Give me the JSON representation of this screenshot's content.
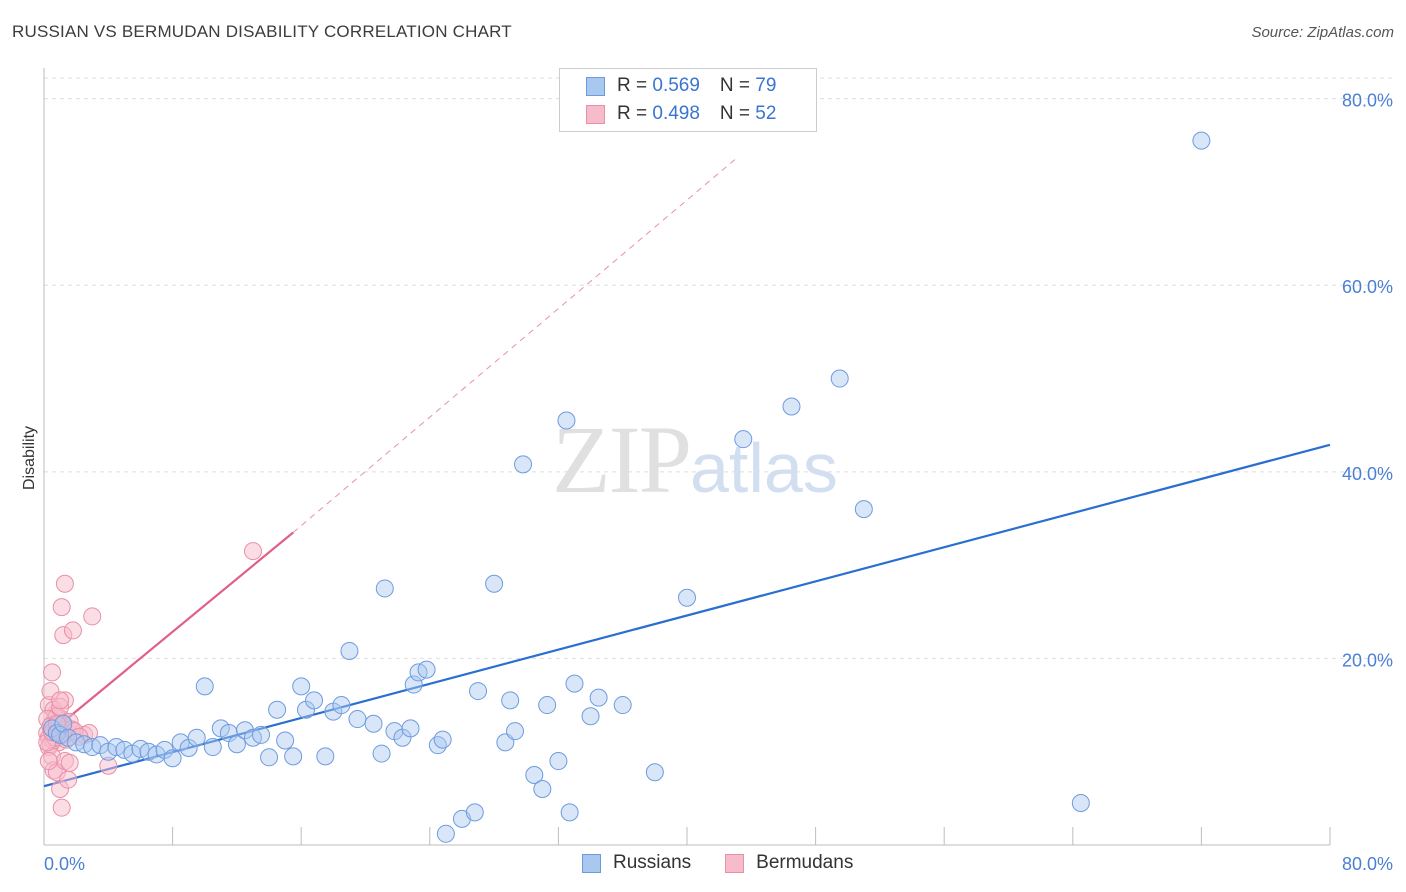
{
  "header": {
    "title": "RUSSIAN VS BERMUDAN DISABILITY CORRELATION CHART",
    "source": "Source: ZipAtlas.com"
  },
  "watermark": {
    "zip": "ZIP",
    "atlas": "atlas"
  },
  "legend": {
    "russians": {
      "r_label": "R = ",
      "r_value": "0.569",
      "n_label": "N = ",
      "n_value": "79"
    },
    "bermudans": {
      "r_label": "R = ",
      "r_value": "0.498",
      "n_label": "N = ",
      "n_value": "52"
    }
  },
  "bottom_legend": {
    "russians": "Russians",
    "bermudans": "Bermudans"
  },
  "colors": {
    "russians_fill": "#a9c8f0",
    "russians_stroke": "#6e9be0",
    "russians_line": "#2a6fd0",
    "bermudans_fill": "#f7bccc",
    "bermudans_stroke": "#e890a8",
    "bermudans_line": "#e0608a",
    "tick_text": "#4a7fd4"
  },
  "chart_data": {
    "type": "scatter",
    "title": "RUSSIAN VS BERMUDAN DISABILITY CORRELATION CHART",
    "xlabel": "",
    "ylabel": "Disability",
    "xlim": [
      0,
      80
    ],
    "ylim": [
      0,
      82
    ],
    "x_tick_labels": [
      "0.0%",
      "80.0%"
    ],
    "y_tick_labels": [
      "20.0%",
      "40.0%",
      "60.0%",
      "80.0%"
    ],
    "y_ticks": [
      20,
      40,
      60,
      80
    ],
    "grid": "horizontal dashed",
    "legend_position": "top-center",
    "series": [
      {
        "name": "Russians",
        "r": 0.569,
        "n": 79,
        "trend": {
          "x": [
            0,
            80
          ],
          "y": [
            6.3,
            42.9
          ],
          "style": "solid"
        },
        "points": [
          [
            0.5,
            12.5
          ],
          [
            0.8,
            12.0
          ],
          [
            1.0,
            11.8
          ],
          [
            1.2,
            13.0
          ],
          [
            1.5,
            11.5
          ],
          [
            2.0,
            11.0
          ],
          [
            2.5,
            10.8
          ],
          [
            3.0,
            10.5
          ],
          [
            3.5,
            10.7
          ],
          [
            4.0,
            10.0
          ],
          [
            4.5,
            10.5
          ],
          [
            5.0,
            10.2
          ],
          [
            5.5,
            9.8
          ],
          [
            6.0,
            10.3
          ],
          [
            6.5,
            10.0
          ],
          [
            7.0,
            9.7
          ],
          [
            7.5,
            10.2
          ],
          [
            8.0,
            9.3
          ],
          [
            8.5,
            11.0
          ],
          [
            9.0,
            10.4
          ],
          [
            9.5,
            11.5
          ],
          [
            10.0,
            17.0
          ],
          [
            10.5,
            10.5
          ],
          [
            11.0,
            12.5
          ],
          [
            11.5,
            12.0
          ],
          [
            12.0,
            10.8
          ],
          [
            12.5,
            12.3
          ],
          [
            13.0,
            11.5
          ],
          [
            13.5,
            11.8
          ],
          [
            14.0,
            9.4
          ],
          [
            14.5,
            14.5
          ],
          [
            15.0,
            11.2
          ],
          [
            15.5,
            9.5
          ],
          [
            16.0,
            17.0
          ],
          [
            16.3,
            14.5
          ],
          [
            16.8,
            15.5
          ],
          [
            17.5,
            9.5
          ],
          [
            18.0,
            14.3
          ],
          [
            18.5,
            15.0
          ],
          [
            19.0,
            20.8
          ],
          [
            19.5,
            13.5
          ],
          [
            20.5,
            13.0
          ],
          [
            21.0,
            9.8
          ],
          [
            21.2,
            27.5
          ],
          [
            21.8,
            12.2
          ],
          [
            22.3,
            11.5
          ],
          [
            22.8,
            12.5
          ],
          [
            23.0,
            17.2
          ],
          [
            23.3,
            18.5
          ],
          [
            23.8,
            18.8
          ],
          [
            24.5,
            10.7
          ],
          [
            24.8,
            11.3
          ],
          [
            25.0,
            1.2
          ],
          [
            26.0,
            2.8
          ],
          [
            26.8,
            3.5
          ],
          [
            27.0,
            16.5
          ],
          [
            28.0,
            28.0
          ],
          [
            28.7,
            11.0
          ],
          [
            29.0,
            15.5
          ],
          [
            29.3,
            12.2
          ],
          [
            29.8,
            40.8
          ],
          [
            30.5,
            7.5
          ],
          [
            31.0,
            6.0
          ],
          [
            31.3,
            15.0
          ],
          [
            32.0,
            9.0
          ],
          [
            32.5,
            45.5
          ],
          [
            32.7,
            3.5
          ],
          [
            33.0,
            17.3
          ],
          [
            34.0,
            13.8
          ],
          [
            34.5,
            15.8
          ],
          [
            36.0,
            15.0
          ],
          [
            38.0,
            7.8
          ],
          [
            40.0,
            26.5
          ],
          [
            43.5,
            43.5
          ],
          [
            46.5,
            47.0
          ],
          [
            49.5,
            50.0
          ],
          [
            51.0,
            36.0
          ],
          [
            64.5,
            4.5
          ],
          [
            72.0,
            75.5
          ]
        ]
      },
      {
        "name": "Bermudans",
        "r": 0.498,
        "n": 52,
        "trend": {
          "x": [
            0,
            15.5
          ],
          "y": [
            11.5,
            33.5
          ],
          "style": "solid"
        },
        "trend_extension": {
          "x": [
            15.5,
            43
          ],
          "y": [
            33.5,
            73.5
          ],
          "style": "dashed"
        },
        "points": [
          [
            0.2,
            12.0
          ],
          [
            0.3,
            11.5
          ],
          [
            0.4,
            10.8
          ],
          [
            0.5,
            13.0
          ],
          [
            0.6,
            11.2
          ],
          [
            0.7,
            14.0
          ],
          [
            0.8,
            12.5
          ],
          [
            0.9,
            11.0
          ],
          [
            1.0,
            12.2
          ],
          [
            1.1,
            13.5
          ],
          [
            1.2,
            11.8
          ],
          [
            1.3,
            15.5
          ],
          [
            1.5,
            12.0
          ],
          [
            0.3,
            15.0
          ],
          [
            0.4,
            16.5
          ],
          [
            0.5,
            18.5
          ],
          [
            0.6,
            14.5
          ],
          [
            0.8,
            13.8
          ],
          [
            1.0,
            14.8
          ],
          [
            1.2,
            12.8
          ],
          [
            0.3,
            10.5
          ],
          [
            0.5,
            9.5
          ],
          [
            0.6,
            8.0
          ],
          [
            0.8,
            7.8
          ],
          [
            1.0,
            6.0
          ],
          [
            1.1,
            4.0
          ],
          [
            1.3,
            9.0
          ],
          [
            1.5,
            7.0
          ],
          [
            1.6,
            8.8
          ],
          [
            1.1,
            25.5
          ],
          [
            1.2,
            22.5
          ],
          [
            1.3,
            28.0
          ],
          [
            1.8,
            23.0
          ],
          [
            2.5,
            11.8
          ],
          [
            2.8,
            12.0
          ],
          [
            3.0,
            24.5
          ],
          [
            4.0,
            8.5
          ],
          [
            13.0,
            31.5
          ],
          [
            0.2,
            13.5
          ],
          [
            0.4,
            12.7
          ],
          [
            0.7,
            11.5
          ],
          [
            0.9,
            12.9
          ],
          [
            1.4,
            11.3
          ],
          [
            1.6,
            13.2
          ],
          [
            1.7,
            12.4
          ],
          [
            0.2,
            11.0
          ],
          [
            0.5,
            12.1
          ],
          [
            0.8,
            13.0
          ],
          [
            1.0,
            15.5
          ],
          [
            0.3,
            9.0
          ],
          [
            1.9,
            12.2
          ],
          [
            2.2,
            11.6
          ]
        ]
      }
    ]
  }
}
